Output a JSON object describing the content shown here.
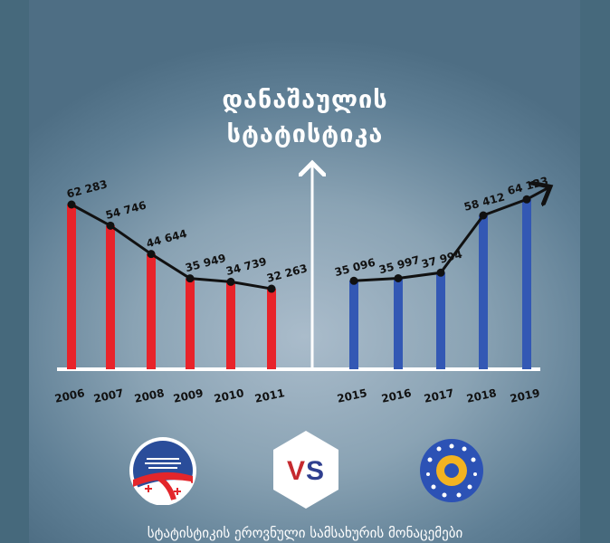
{
  "title_line1": "დანაშაულის",
  "title_line2": "სტატისტიკა",
  "footer": "სტატისტიკის ეროვნული სამსახურის მონაცემები",
  "vs_label": "VS",
  "logos": {
    "left": "ერთიანი ნაციონალური მოძრაობა",
    "right": "ქართული ოცნება"
  },
  "colors": {
    "left_bars": "#e8232a",
    "right_bars": "#3358b4",
    "line": "#111111",
    "axis": "#ffffff"
  },
  "chart_data": [
    {
      "type": "bar",
      "categories": [
        "2006",
        "2007",
        "2008",
        "2009",
        "2010",
        "2011"
      ],
      "values": [
        62283,
        54746,
        44644,
        35949,
        34739,
        32263
      ],
      "value_labels": [
        "62 283",
        "54 746",
        "44 644",
        "35 949",
        "34 739",
        "32 263"
      ],
      "overlay_line": true,
      "color": "#e8232a"
    },
    {
      "type": "bar",
      "categories": [
        "2015",
        "2016",
        "2017",
        "2018",
        "2019"
      ],
      "values": [
        35096,
        35997,
        37994,
        58412,
        64123
      ],
      "value_labels": [
        "35 096",
        "35 997",
        "37 994",
        "58 412",
        "64 123"
      ],
      "overlay_line": true,
      "line_end_arrow": true,
      "color": "#3358b4"
    }
  ]
}
